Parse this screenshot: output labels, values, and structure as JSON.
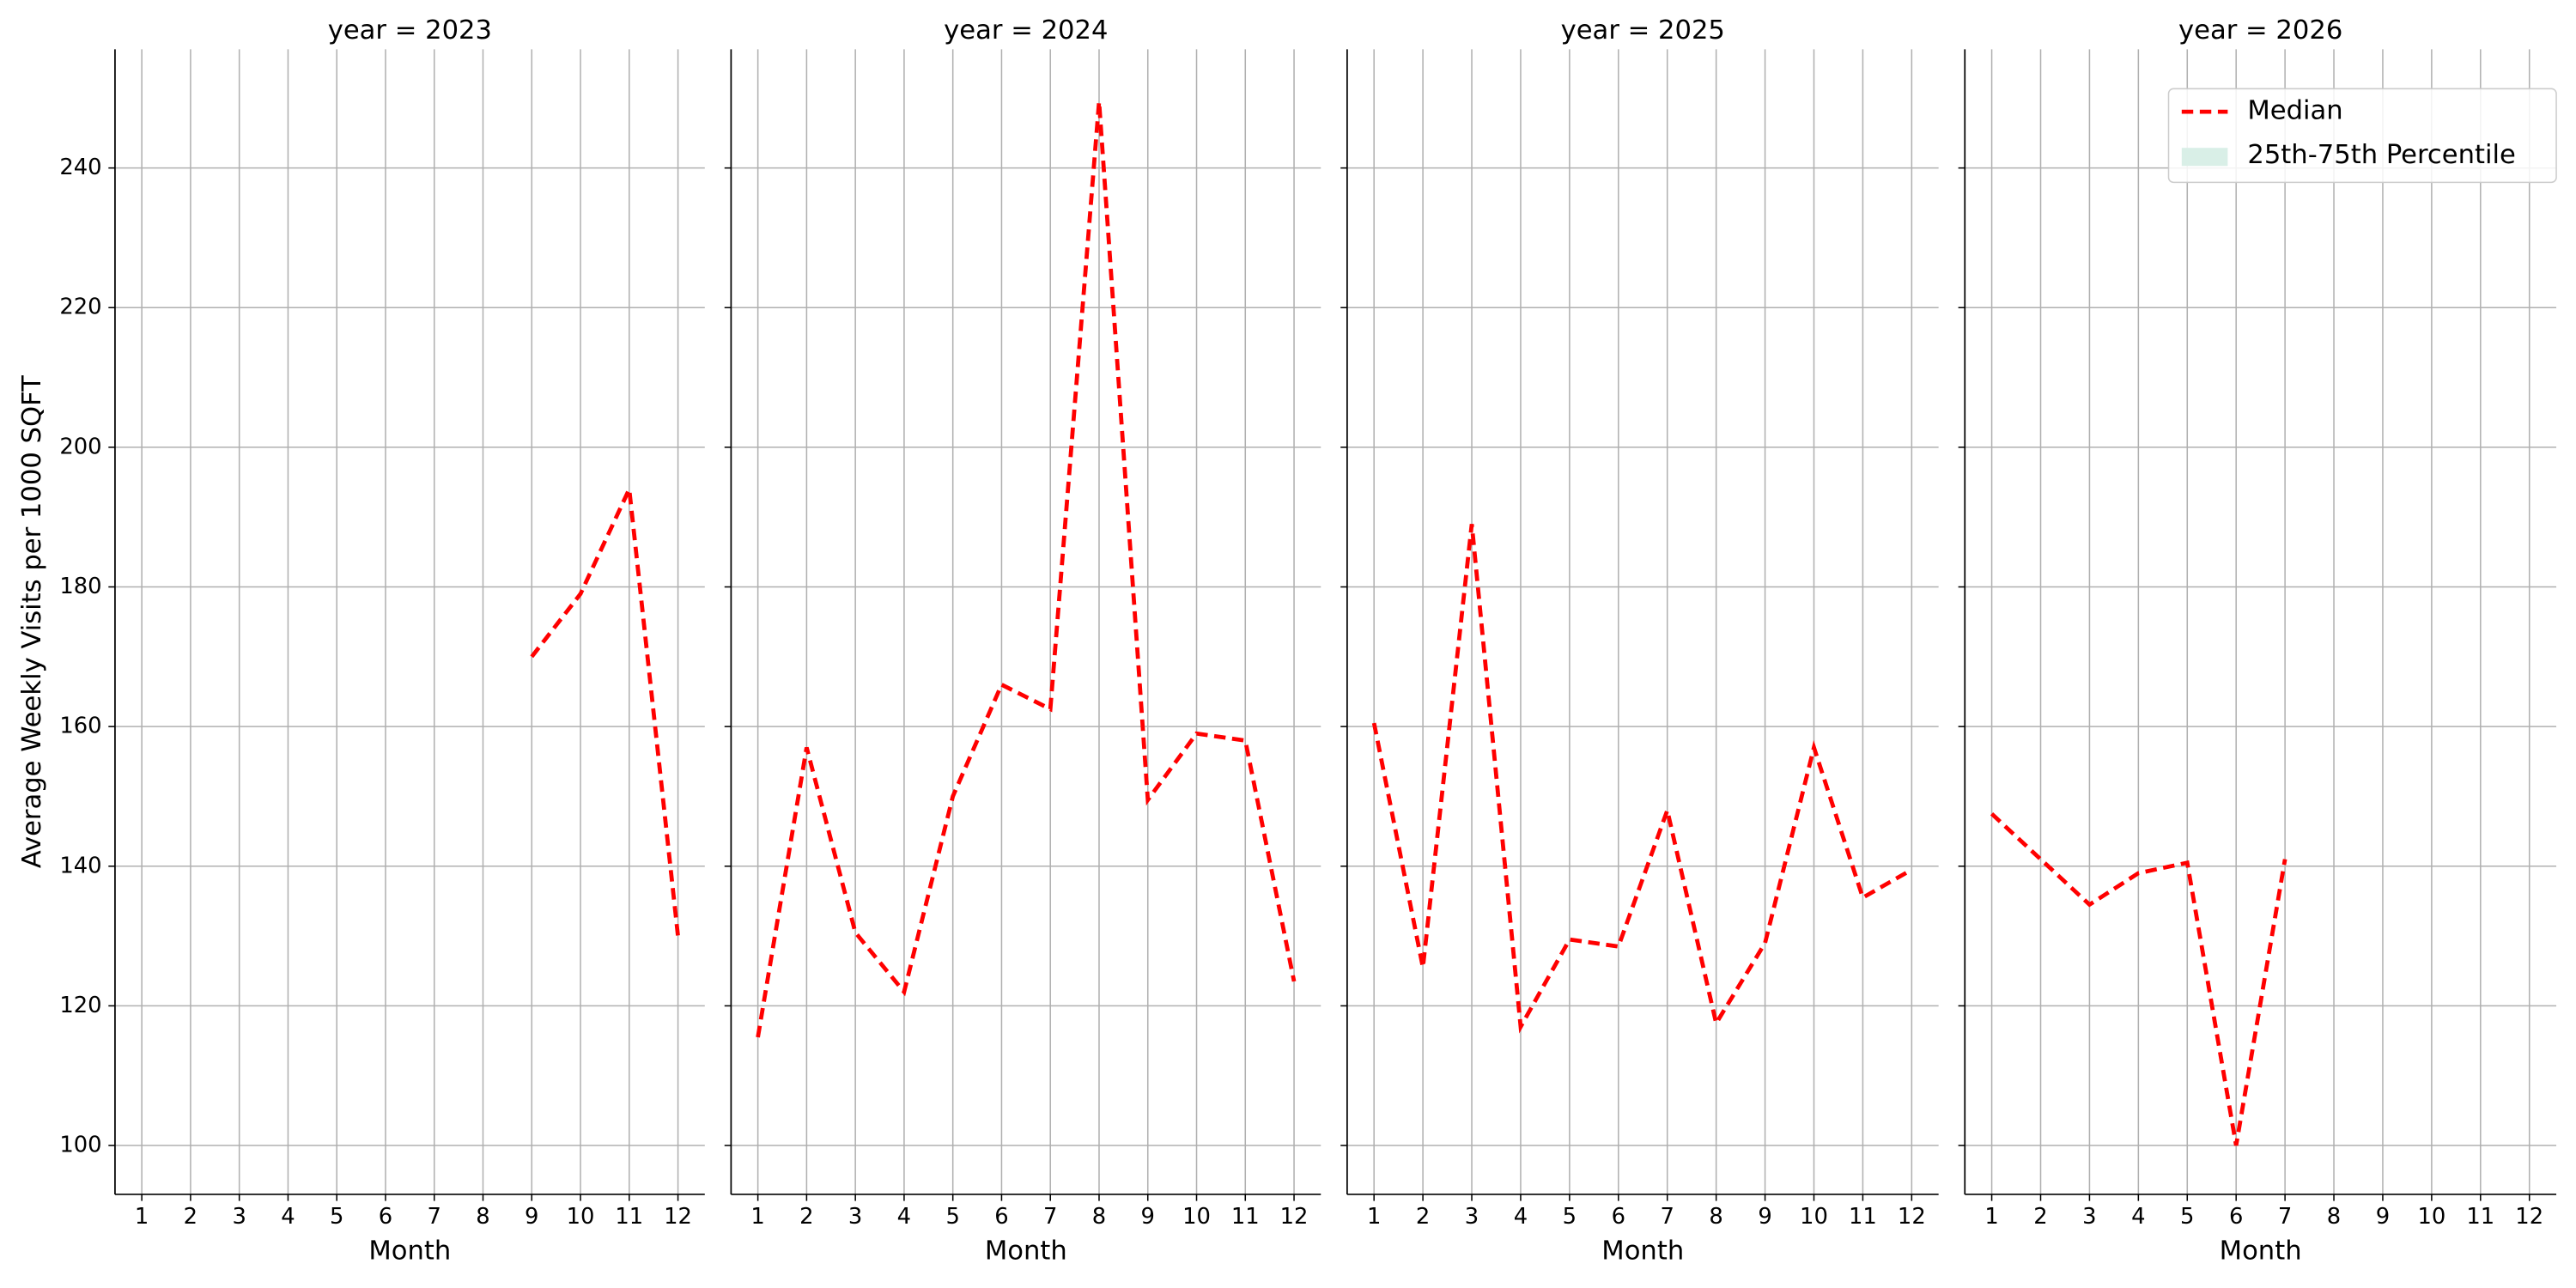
{
  "chart_data": [
    {
      "type": "line",
      "title": "year = 2023",
      "xlabel": "Month",
      "ylabel": "Average Weekly Visits per 1000 SQFT",
      "x": [
        1,
        2,
        3,
        4,
        5,
        6,
        7,
        8,
        9,
        10,
        11,
        12
      ],
      "xlim": [
        0.45,
        12.55
      ],
      "xticks": [
        1,
        2,
        3,
        4,
        5,
        6,
        7,
        8,
        9,
        10,
        11,
        12
      ],
      "ylim": [
        93,
        257
      ],
      "yticks": [
        100,
        120,
        140,
        160,
        180,
        200,
        220,
        240
      ],
      "grid": true,
      "series": [
        {
          "name": "Median",
          "color": "#ff0000",
          "values": [
            null,
            null,
            null,
            null,
            null,
            null,
            null,
            null,
            170,
            179,
            194,
            130
          ]
        }
      ]
    },
    {
      "type": "line",
      "title": "year = 2024",
      "xlabel": "Month",
      "x": [
        1,
        2,
        3,
        4,
        5,
        6,
        7,
        8,
        9,
        10,
        11,
        12
      ],
      "xlim": [
        0.45,
        12.55
      ],
      "xticks": [
        1,
        2,
        3,
        4,
        5,
        6,
        7,
        8,
        9,
        10,
        11,
        12
      ],
      "ylim": [
        93,
        257
      ],
      "yticks": [
        100,
        120,
        140,
        160,
        180,
        200,
        220,
        240
      ],
      "grid": true,
      "series": [
        {
          "name": "Median",
          "color": "#ff0000",
          "values": [
            115.5,
            157,
            130.5,
            122,
            150,
            166,
            162.5,
            249.5,
            149.5,
            159,
            158,
            123.5
          ]
        }
      ]
    },
    {
      "type": "line",
      "title": "year = 2025",
      "xlabel": "Month",
      "x": [
        1,
        2,
        3,
        4,
        5,
        6,
        7,
        8,
        9,
        10,
        11,
        12
      ],
      "xlim": [
        0.45,
        12.55
      ],
      "xticks": [
        1,
        2,
        3,
        4,
        5,
        6,
        7,
        8,
        9,
        10,
        11,
        12
      ],
      "ylim": [
        93,
        257
      ],
      "yticks": [
        100,
        120,
        140,
        160,
        180,
        200,
        220,
        240
      ],
      "grid": true,
      "series": [
        {
          "name": "Median",
          "color": "#ff0000",
          "values": [
            160.5,
            125.5,
            189,
            117,
            129.5,
            128.5,
            148,
            117.5,
            129,
            157,
            135.5,
            139.5
          ]
        }
      ]
    },
    {
      "type": "line",
      "title": "year = 2026",
      "xlabel": "Month",
      "x": [
        1,
        2,
        3,
        4,
        5,
        6,
        7,
        8,
        9,
        10,
        11,
        12
      ],
      "xlim": [
        0.45,
        12.55
      ],
      "xticks": [
        1,
        2,
        3,
        4,
        5,
        6,
        7,
        8,
        9,
        10,
        11,
        12
      ],
      "ylim": [
        93,
        257
      ],
      "yticks": [
        100,
        120,
        140,
        160,
        180,
        200,
        220,
        240
      ],
      "grid": true,
      "legend": "upper right",
      "series": [
        {
          "name": "Median",
          "color": "#ff0000",
          "values": [
            147.5,
            141,
            134.5,
            139,
            140.5,
            100,
            141,
            null,
            null,
            null,
            null,
            null
          ]
        },
        {
          "name": "25th-75th Percentile",
          "color": "#d9efe7",
          "type": "band"
        }
      ]
    }
  ]
}
